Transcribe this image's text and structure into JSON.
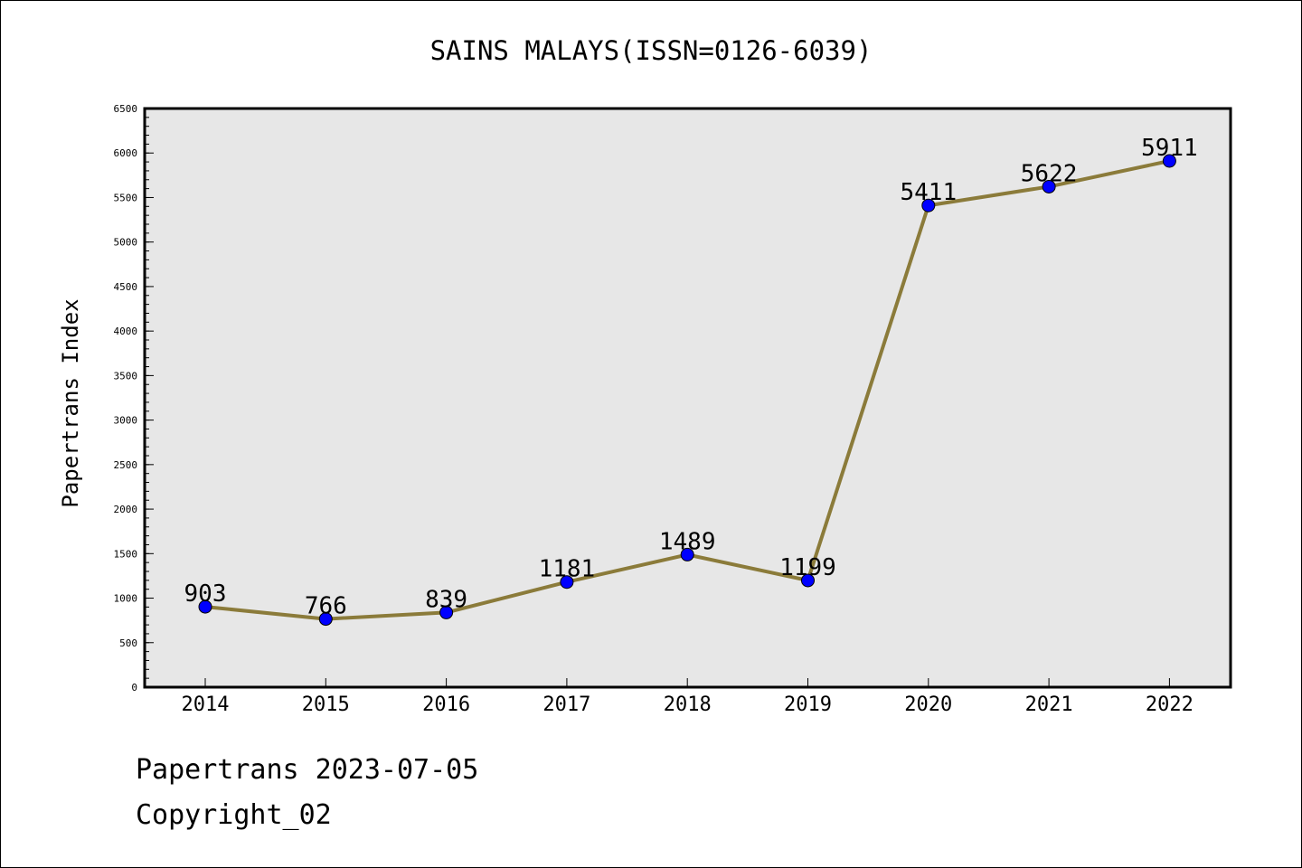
{
  "chart_data": {
    "type": "line",
    "title": "SAINS MALAYS(ISSN=0126-6039)",
    "xlabel": "",
    "ylabel": "Papertrans Index",
    "categories": [
      "2014",
      "2015",
      "2016",
      "2017",
      "2018",
      "2019",
      "2020",
      "2021",
      "2022"
    ],
    "series": [
      {
        "values": [
          903,
          766,
          839,
          1181,
          1489,
          1199,
          5411,
          5622,
          5911
        ]
      }
    ],
    "data_labels": [
      "903",
      "766",
      "839",
      "1181",
      "1489",
      "1199",
      "5411",
      "5622",
      "5911"
    ],
    "ylim": [
      0,
      6500
    ],
    "yticks": [
      "0",
      "500",
      "1000",
      "1500",
      "2000",
      "2500",
      "3000",
      "3500",
      "4000",
      "4500",
      "5000",
      "5500",
      "6000",
      "6500"
    ],
    "grid": false,
    "legend": "none",
    "colors": {
      "plot_background": "#e7e7e7",
      "line": "#8b7b3a",
      "marker": "#0000ff"
    }
  },
  "footer": {
    "line1": "Papertrans 2023-07-05",
    "line2": "Copyright_02"
  }
}
